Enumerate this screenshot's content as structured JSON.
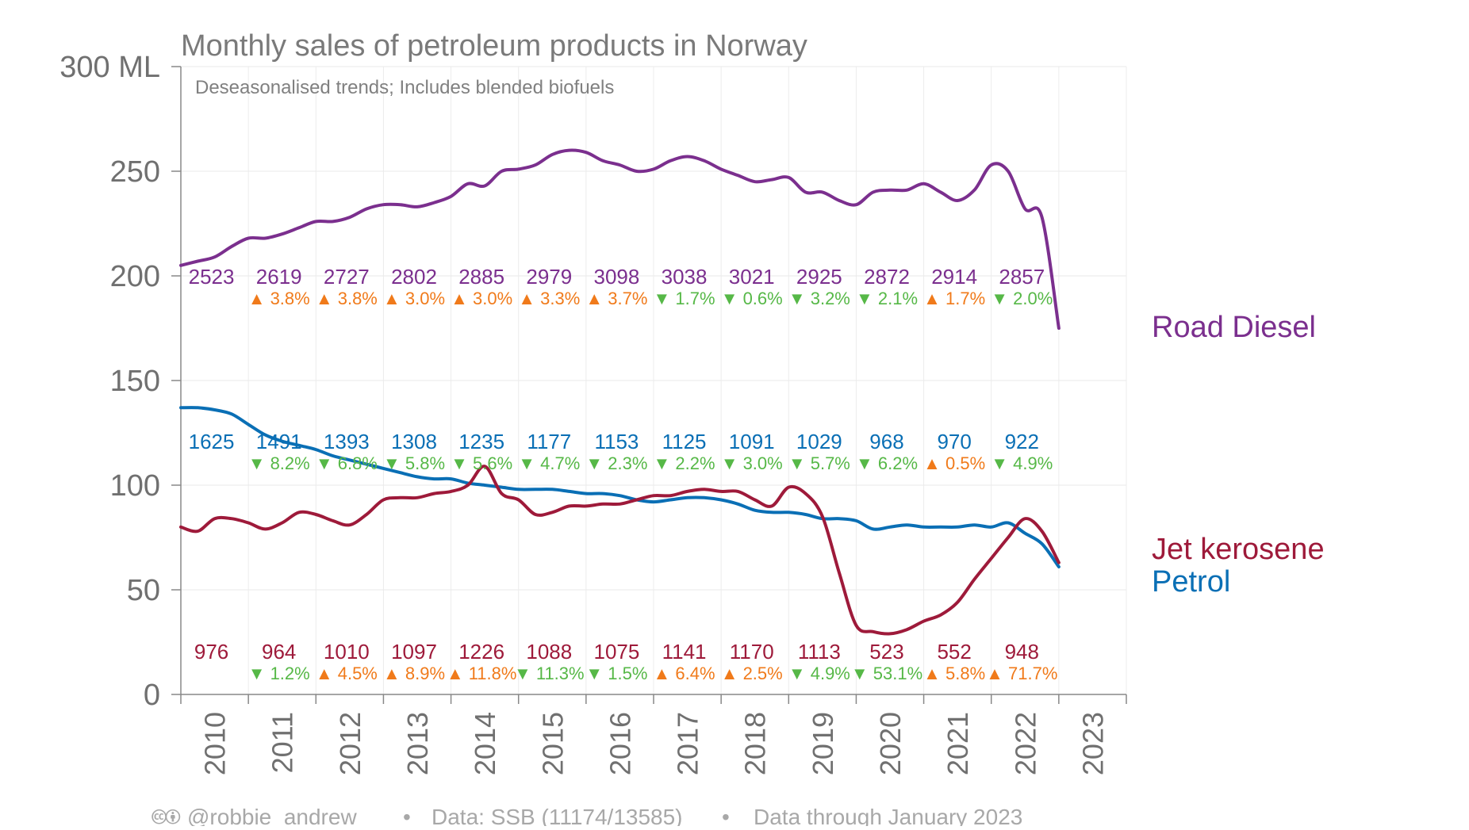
{
  "chart_data": {
    "type": "line",
    "title": "Monthly sales of petroleum products in Norway",
    "subtitle": "Deseasonalised trends; Includes blended biofuels",
    "y_unit_label": "300 ML",
    "yticks": [
      "0",
      "50",
      "100",
      "150",
      "200",
      "250"
    ],
    "ylim": [
      0,
      300
    ],
    "xticks": [
      "2010",
      "2011",
      "2012",
      "2013",
      "2014",
      "2015",
      "2016",
      "2017",
      "2018",
      "2019",
      "2020",
      "2021",
      "2022",
      "2023"
    ],
    "xlim": [
      2010,
      2024
    ],
    "grid": true,
    "colors": {
      "Road Diesel": "#7b2f8e",
      "Petrol": "#0a6fb5",
      "Jet kerosene": "#9e1a3a",
      "up": "#f07a1a",
      "down": "#56b847"
    },
    "series": [
      {
        "name": "Road Diesel",
        "color": "#7b2f8e",
        "x": [
          2010.0,
          2010.25,
          2010.5,
          2010.75,
          2011.0,
          2011.25,
          2011.5,
          2011.75,
          2012.0,
          2012.25,
          2012.5,
          2012.75,
          2013.0,
          2013.25,
          2013.5,
          2013.75,
          2014.0,
          2014.25,
          2014.5,
          2014.75,
          2015.0,
          2015.25,
          2015.5,
          2015.75,
          2016.0,
          2016.25,
          2016.5,
          2016.75,
          2017.0,
          2017.25,
          2017.5,
          2017.75,
          2018.0,
          2018.25,
          2018.5,
          2018.75,
          2019.0,
          2019.25,
          2019.5,
          2019.75,
          2020.0,
          2020.25,
          2020.5,
          2020.75,
          2021.0,
          2021.25,
          2021.5,
          2021.75,
          2022.0,
          2022.25,
          2022.5,
          2022.75,
          2023.0
        ],
        "values": [
          205,
          207,
          209,
          214,
          218,
          218,
          220,
          223,
          226,
          226,
          228,
          232,
          234,
          234,
          233,
          235,
          238,
          244,
          243,
          250,
          251,
          253,
          258,
          260,
          259,
          255,
          253,
          250,
          251,
          255,
          257,
          255,
          251,
          248,
          245,
          246,
          247,
          240,
          240,
          236,
          234,
          240,
          241,
          241,
          244,
          240,
          236,
          241,
          253,
          250,
          232,
          228,
          175
        ]
      },
      {
        "name": "Petrol",
        "color": "#0a6fb5",
        "x": [
          2010.0,
          2010.25,
          2010.5,
          2010.75,
          2011.0,
          2011.25,
          2011.5,
          2011.75,
          2012.0,
          2012.25,
          2012.5,
          2012.75,
          2013.0,
          2013.25,
          2013.5,
          2013.75,
          2014.0,
          2014.25,
          2014.5,
          2014.75,
          2015.0,
          2015.25,
          2015.5,
          2015.75,
          2016.0,
          2016.25,
          2016.5,
          2016.75,
          2017.0,
          2017.25,
          2017.5,
          2017.75,
          2018.0,
          2018.25,
          2018.5,
          2018.75,
          2019.0,
          2019.25,
          2019.5,
          2019.75,
          2020.0,
          2020.25,
          2020.5,
          2020.75,
          2021.0,
          2021.25,
          2021.5,
          2021.75,
          2022.0,
          2022.25,
          2022.5,
          2022.75,
          2023.0
        ],
        "values": [
          137,
          137,
          136,
          134,
          129,
          124,
          121,
          119,
          117,
          114,
          112,
          110,
          108,
          106,
          104,
          103,
          103,
          101,
          100,
          99,
          98,
          98,
          98,
          97,
          96,
          96,
          95,
          93,
          92,
          93,
          94,
          94,
          93,
          91,
          88,
          87,
          87,
          86,
          84,
          84,
          83,
          79,
          80,
          81,
          80,
          80,
          80,
          81,
          80,
          82,
          77,
          72,
          61
        ]
      },
      {
        "name": "Jet kerosene",
        "color": "#9e1a3a",
        "x": [
          2010.0,
          2010.25,
          2010.5,
          2010.75,
          2011.0,
          2011.25,
          2011.5,
          2011.75,
          2012.0,
          2012.25,
          2012.5,
          2012.75,
          2013.0,
          2013.25,
          2013.5,
          2013.75,
          2014.0,
          2014.25,
          2014.5,
          2014.75,
          2015.0,
          2015.25,
          2015.5,
          2015.75,
          2016.0,
          2016.25,
          2016.5,
          2016.75,
          2017.0,
          2017.25,
          2017.5,
          2017.75,
          2018.0,
          2018.25,
          2018.5,
          2018.75,
          2019.0,
          2019.25,
          2019.5,
          2019.75,
          2020.0,
          2020.25,
          2020.5,
          2020.75,
          2021.0,
          2021.25,
          2021.5,
          2021.75,
          2022.0,
          2022.25,
          2022.5,
          2022.75,
          2023.0
        ],
        "values": [
          80,
          78,
          84,
          84,
          82,
          79,
          82,
          87,
          86,
          83,
          81,
          86,
          93,
          94,
          94,
          96,
          97,
          100,
          109,
          96,
          93,
          86,
          87,
          90,
          90,
          91,
          91,
          93,
          95,
          95,
          97,
          98,
          97,
          97,
          93,
          90,
          99,
          96,
          85,
          58,
          33,
          30,
          29,
          31,
          35,
          38,
          44,
          55,
          65,
          75,
          84,
          78,
          63
        ]
      }
    ],
    "annotations": {
      "years": [
        2010,
        2011,
        2012,
        2013,
        2014,
        2015,
        2016,
        2017,
        2018,
        2019,
        2020,
        2021,
        2022
      ],
      "Road Diesel": {
        "totals": [
          "2523",
          "2619",
          "2727",
          "2802",
          "2885",
          "2979",
          "3098",
          "3038",
          "3021",
          "2925",
          "2872",
          "2914",
          "2857"
        ],
        "changes": [
          null,
          "▲ 3.8%",
          "▲ 3.8%",
          "▲ 3.0%",
          "▲ 3.0%",
          "▲ 3.3%",
          "▲ 3.7%",
          "▼ 1.7%",
          "▼ 0.6%",
          "▼ 3.2%",
          "▼ 2.1%",
          "▲ 1.7%",
          "▼ 2.0%"
        ]
      },
      "Petrol": {
        "totals": [
          "1625",
          "1491",
          "1393",
          "1308",
          "1235",
          "1177",
          "1153",
          "1125",
          "1091",
          "1029",
          "968",
          "970",
          "922"
        ],
        "changes": [
          null,
          "▼ 8.2%",
          "▼ 6.8%",
          "▼ 5.8%",
          "▼ 5.6%",
          "▼ 4.7%",
          "▼ 2.3%",
          "▼ 2.2%",
          "▼ 3.0%",
          "▼ 5.7%",
          "▼ 6.2%",
          "▲ 0.5%",
          "▼ 4.9%"
        ]
      },
      "Jet kerosene": {
        "totals": [
          "976",
          "964",
          "1010",
          "1097",
          "1226",
          "1088",
          "1075",
          "1141",
          "1170",
          "1113",
          "523",
          "552",
          "948"
        ],
        "changes": [
          null,
          "▼ 1.2%",
          "▲ 4.5%",
          "▲ 8.9%",
          "▲ 11.8%",
          "▼ 11.3%",
          "▼ 1.5%",
          "▲ 6.4%",
          "▲ 2.5%",
          "▼ 4.9%",
          "▼ 53.1%",
          "▲ 5.8%",
          "▲ 71.7%"
        ]
      }
    },
    "series_labels": [
      {
        "name": "Road Diesel",
        "text": "Road Diesel",
        "color": "#7b2f8e"
      },
      {
        "name": "Jet kerosene",
        "text": "Jet kerosene",
        "color": "#9e1a3a"
      },
      {
        "name": "Petrol",
        "text": "Petrol",
        "color": "#0a6fb5"
      }
    ]
  },
  "footer": {
    "cc_icons": "🅭🅯",
    "author": "@robbie_andrew",
    "source": "Data: SSB (11174/13585)",
    "coverage": "Data through January 2023",
    "separator": "•"
  }
}
